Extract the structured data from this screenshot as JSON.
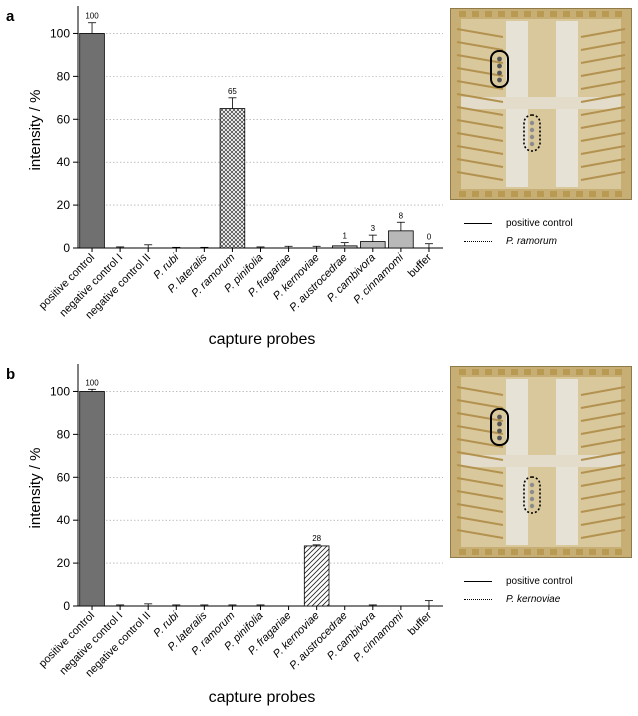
{
  "panels": [
    {
      "letter": "a",
      "chart_data": {
        "type": "bar",
        "title": "",
        "xlabel": "capture probes",
        "ylabel": "intensity / %",
        "ylim": [
          0,
          110
        ],
        "yticks": [
          0,
          20,
          40,
          60,
          80,
          100
        ],
        "grid": "horizontal dotted",
        "categories": [
          "positive control",
          "negative control I",
          "negative control II",
          "P. rubi",
          "P. lateralis",
          "P. ramorum",
          "P. pinifolia",
          "P. fragariae",
          "P. kernoviae",
          "P. austrocedrae",
          "P. cambivora",
          "P. cinnamomi",
          "buffer"
        ],
        "italic_from_index": 3,
        "values": [
          100,
          0,
          0,
          0,
          0,
          65,
          0,
          0,
          0,
          1,
          3,
          8,
          0
        ],
        "errors": [
          5,
          0.5,
          1.5,
          0.3,
          0.3,
          5,
          0.5,
          0.8,
          0.8,
          1.5,
          3,
          4,
          2
        ],
        "data_labels": [
          "100",
          "",
          "",
          "",
          "",
          "65",
          "",
          "",
          "",
          "1",
          "3",
          "8",
          "0"
        ],
        "fill_styles": [
          "dark",
          "none",
          "none",
          "none",
          "none",
          "crosshatch",
          "none",
          "none",
          "none",
          "light",
          "light",
          "light",
          "none"
        ]
      },
      "legend": {
        "solid_label": "positive control",
        "dotted_label": "P. ramorum"
      }
    },
    {
      "letter": "b",
      "chart_data": {
        "type": "bar",
        "title": "",
        "xlabel": "capture probes",
        "ylabel": "intensity / %",
        "ylim": [
          0,
          110
        ],
        "yticks": [
          0,
          20,
          40,
          60,
          80,
          100
        ],
        "grid": "horizontal dotted",
        "categories": [
          "positive control",
          "negative control I",
          "negative control II",
          "P. rubi",
          "P. lateralis",
          "P. ramorum",
          "P. pinifolia",
          "P. fragariae",
          "P. kernoviae",
          "P. austrocedrae",
          "P. cambivora",
          "P. cinnamomi",
          "buffer"
        ],
        "italic_from_index": 3,
        "values": [
          100,
          0,
          0,
          0,
          0,
          0,
          0,
          0,
          28,
          0,
          0,
          0,
          0
        ],
        "errors": [
          1,
          0.5,
          1,
          0.5,
          0.5,
          0.5,
          0.5,
          0,
          0.5,
          0,
          0.5,
          0,
          2.5
        ],
        "data_labels": [
          "100",
          "",
          "",
          "",
          "",
          "",
          "",
          "",
          "28",
          "",
          "",
          "",
          ""
        ],
        "fill_styles": [
          "dark",
          "none",
          "none",
          "none",
          "none",
          "none",
          "none",
          "none",
          "diagonal",
          "none",
          "none",
          "none",
          "none"
        ]
      },
      "legend": {
        "solid_label": "positive control",
        "dotted_label": "P. kernoviae"
      }
    }
  ],
  "colors": {
    "dark_bar": "#707070",
    "light_bar": "#b8b8b8",
    "grid": "#9a9a9a",
    "chip_gold": "#c9b27a"
  }
}
